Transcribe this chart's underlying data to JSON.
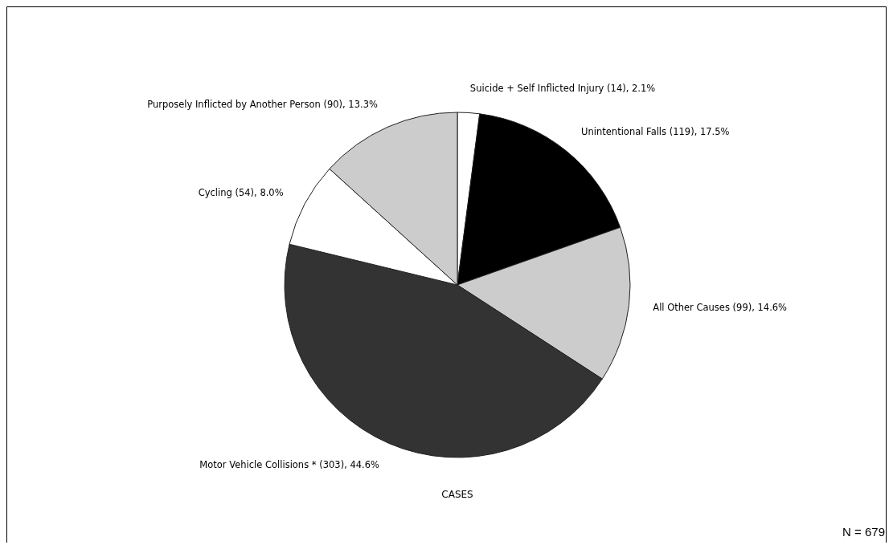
{
  "chart_data": {
    "type": "pie",
    "title": "CASES",
    "categories": [
      "Suicide + Self Inflicted Injury",
      "Unintentional Falls",
      "All Other Causes",
      "Motor Vehicle Collisions *",
      "Cycling",
      "Purposely Inflicted by Another Person"
    ],
    "values": [
      14,
      119,
      99,
      303,
      54,
      90
    ],
    "value_labels": [
      "(14), 2.1%",
      "(119), 17.5%",
      "(99), 14.6%",
      "(303), 44.6%",
      "(54), 8.0%",
      "(90), 13.3%"
    ],
    "colors": [
      "#ffffff",
      "#000000",
      "#cccccc",
      "#333333",
      "#ffffff",
      "#cccccc"
    ],
    "annotations": [
      "N = 679"
    ]
  }
}
